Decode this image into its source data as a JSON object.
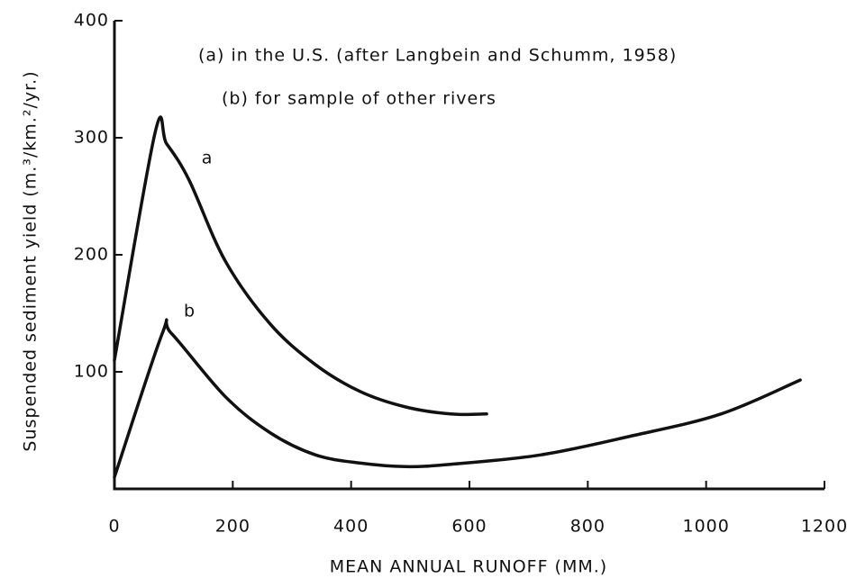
{
  "chart_data": {
    "type": "line",
    "annotations": [
      "(a) in the U.S. (after Langbein and Schumm, 1958)",
      "(b) for sample of other rivers"
    ],
    "x_label": "MEAN ANNUAL RUNOFF (MM.)",
    "y_label": "Suspended sediment yield (m.³/km.²/yr.)",
    "xlim": [
      0,
      1200
    ],
    "ylim": [
      0,
      400
    ],
    "xticks": [
      0,
      200,
      400,
      600,
      800,
      1000,
      1200
    ],
    "yticks": [
      100,
      200,
      300,
      400
    ],
    "series": [
      {
        "name": "a",
        "color": "#111111",
        "x": [
          0,
          69,
          88,
          126,
          187,
          263,
          340,
          416,
          492,
          568,
          629
        ],
        "values": [
          110,
          305,
          295,
          264,
          195,
          141,
          106,
          83,
          70,
          64,
          64
        ]
      },
      {
        "name": "b",
        "color": "#111111",
        "x": [
          0,
          81,
          96,
          187,
          263,
          340,
          416,
          492,
          568,
          720,
          872,
          1025,
          1159
        ],
        "values": [
          10,
          133,
          133,
          79,
          48,
          29,
          22,
          19,
          21,
          29,
          45,
          64,
          93
        ]
      }
    ]
  }
}
